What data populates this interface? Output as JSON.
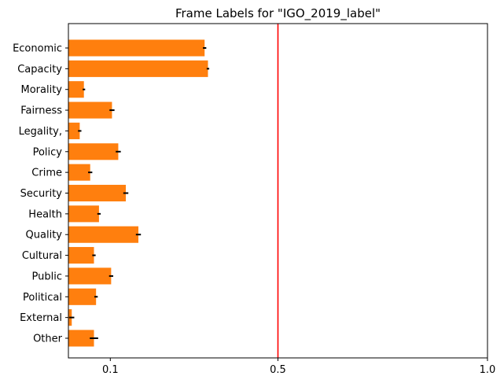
{
  "chart_data": {
    "type": "bar",
    "orientation": "horizontal",
    "title": "Frame Labels for \"IGO_2019_label\"",
    "xlabel": "",
    "ylabel": "",
    "xlim": [
      0,
      1.0
    ],
    "xticks": [
      0.1,
      0.5,
      1.0
    ],
    "xtick_labels": [
      "0.1",
      "0.5",
      "1.0"
    ],
    "categories": [
      "Economic",
      "Capacity",
      "Morality",
      "Fairness",
      "Legality,",
      "Policy",
      "Crime",
      "Security",
      "Health",
      "Quality",
      "Cultural",
      "Public",
      "Political",
      "External",
      "Other"
    ],
    "values": [
      0.325,
      0.333,
      0.037,
      0.104,
      0.027,
      0.119,
      0.052,
      0.137,
      0.073,
      0.167,
      0.061,
      0.102,
      0.066,
      0.008,
      0.061
    ],
    "errors": [
      0.004,
      0.003,
      0.003,
      0.006,
      0.004,
      0.006,
      0.005,
      0.006,
      0.004,
      0.006,
      0.004,
      0.005,
      0.004,
      0.006,
      0.01
    ],
    "reference_line": 0.5,
    "grid": false,
    "colors": {
      "bar": "#ff7f0e",
      "reference_line": "#ff0000",
      "error_bar": "#000000"
    }
  }
}
